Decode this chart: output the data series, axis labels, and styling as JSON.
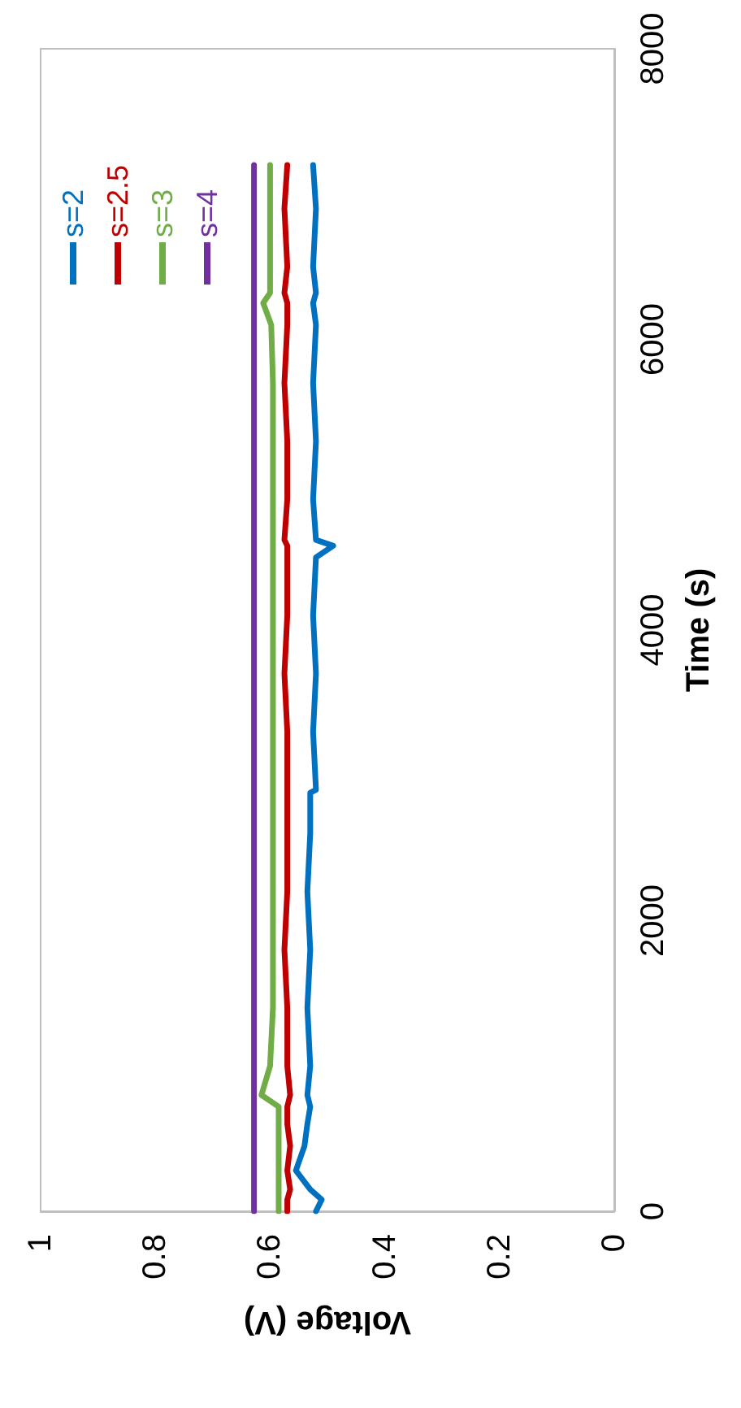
{
  "chart_data": {
    "type": "line",
    "xlabel": "Voltage (V)",
    "ylabel": "Time (s)",
    "xlim": [
      1,
      0
    ],
    "xticks": [
      0,
      0.2,
      0.4,
      0.6,
      0.8,
      1
    ],
    "ylim": [
      0,
      8000
    ],
    "yticks": [
      0,
      2000,
      4000,
      6000,
      8000
    ],
    "grid": false,
    "legend": "top left",
    "marker": "none",
    "line_style": "solid",
    "series": [
      {
        "name": "s=2",
        "color": "#0070c0",
        "x": [
          0.52,
          0.51,
          0.53,
          0.555,
          0.54,
          0.535,
          0.53,
          0.535,
          0.53,
          0.535,
          0.53,
          0.535,
          0.53,
          0.53,
          0.52,
          0.525,
          0.52,
          0.525,
          0.52,
          0.49,
          0.52,
          0.525,
          0.52,
          0.525,
          0.52,
          0.525,
          0.52,
          0.525,
          0.52,
          0.525
        ],
        "values": [
          0,
          80,
          150,
          280,
          450,
          600,
          720,
          800,
          1000,
          1400,
          1800,
          2200,
          2600,
          2880,
          2900,
          3300,
          3700,
          4100,
          4500,
          4580,
          4620,
          4900,
          5300,
          5700,
          6100,
          6250,
          6320,
          6500,
          6900,
          7200
        ]
      },
      {
        "name": "s=2.5",
        "color": "#c00000",
        "x": [
          0.57,
          0.57,
          0.565,
          0.57,
          0.565,
          0.57,
          0.57,
          0.565,
          0.57,
          0.57,
          0.575,
          0.57,
          0.57,
          0.57,
          0.57,
          0.57,
          0.575,
          0.57,
          0.57,
          0.57,
          0.575,
          0.57,
          0.57,
          0.575,
          0.57,
          0.57,
          0.575,
          0.57,
          0.575,
          0.57
        ],
        "values": [
          0,
          80,
          150,
          280,
          450,
          600,
          720,
          800,
          1000,
          1400,
          1800,
          2200,
          2600,
          2880,
          2900,
          3300,
          3700,
          4100,
          4500,
          4580,
          4620,
          4900,
          5300,
          5700,
          6100,
          6250,
          6320,
          6500,
          6900,
          7200
        ]
      },
      {
        "name": "s=3",
        "color": "#70ad47",
        "x": [
          0.585,
          0.585,
          0.585,
          0.585,
          0.585,
          0.585,
          0.585,
          0.615,
          0.6,
          0.595,
          0.595,
          0.595,
          0.595,
          0.595,
          0.595,
          0.595,
          0.595,
          0.595,
          0.595,
          0.595,
          0.595,
          0.595,
          0.595,
          0.595,
          0.598,
          0.612,
          0.6,
          0.6,
          0.6,
          0.6
        ],
        "values": [
          0,
          80,
          150,
          280,
          450,
          600,
          720,
          800,
          1000,
          1400,
          1800,
          2200,
          2600,
          2880,
          2900,
          3300,
          3700,
          4100,
          4500,
          4580,
          4620,
          4900,
          5300,
          5700,
          6100,
          6250,
          6320,
          6500,
          6900,
          7200
        ]
      },
      {
        "name": "s=4",
        "color": "#7030a0",
        "x": [
          0.628,
          0.628,
          0.628,
          0.628,
          0.628,
          0.628,
          0.628,
          0.628,
          0.628,
          0.628,
          0.628,
          0.628,
          0.628,
          0.628,
          0.628,
          0.628,
          0.628,
          0.628,
          0.628,
          0.628,
          0.628,
          0.628,
          0.628,
          0.628,
          0.628,
          0.628,
          0.628,
          0.628,
          0.628,
          0.628
        ],
        "values": [
          0,
          80,
          150,
          280,
          450,
          600,
          720,
          800,
          1000,
          1400,
          1800,
          2200,
          2600,
          2880,
          2900,
          3300,
          3700,
          4100,
          4500,
          4580,
          4620,
          4900,
          5300,
          5700,
          6100,
          6250,
          6320,
          6500,
          6900,
          7200
        ]
      }
    ]
  }
}
